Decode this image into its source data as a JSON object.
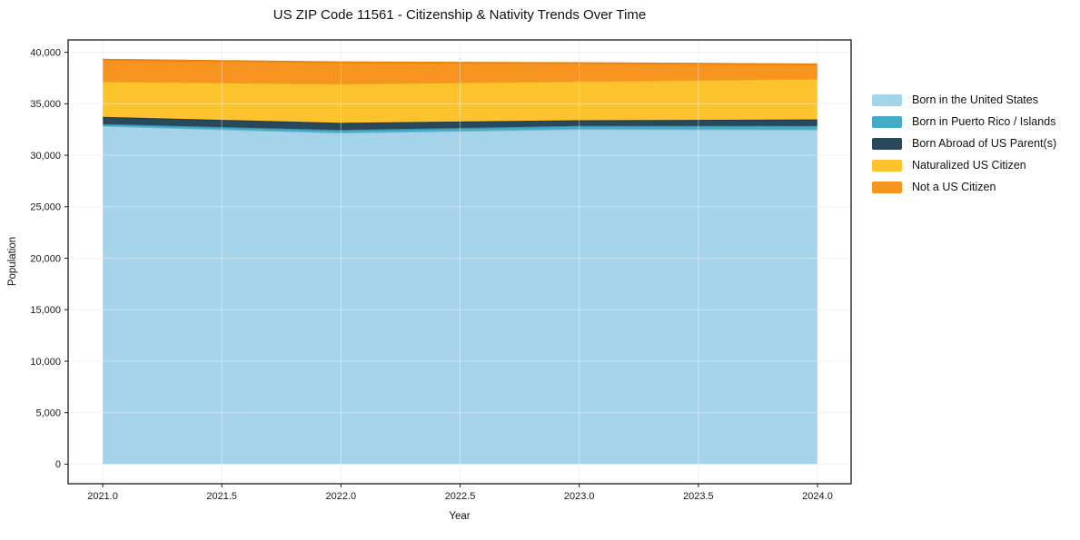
{
  "title": "US ZIP Code 11561 - Citizenship & Nativity Trends Over Time",
  "axes": {
    "xlabel": "Year",
    "ylabel": "Population",
    "xtick_labels": [
      "2021.0",
      "2021.5",
      "2022.0",
      "2022.5",
      "2023.0",
      "2023.5",
      "2024.0"
    ],
    "ytick_labels": [
      "0",
      "5,000",
      "10,000",
      "15,000",
      "20,000",
      "25,000",
      "30,000",
      "35,000",
      "40,000"
    ]
  },
  "legend": {
    "position": "outside-right",
    "items": [
      {
        "label": "Born in the United States",
        "color": "#a5d3e9"
      },
      {
        "label": "Born in Puerto Rico / Islands",
        "color": "#45aac4"
      },
      {
        "label": "Born Abroad of US Parent(s)",
        "color": "#29485c"
      },
      {
        "label": "Naturalized US Citizen",
        "color": "#fdc32d"
      },
      {
        "label": "Not a US Citizen",
        "color": "#f7941f"
      }
    ]
  },
  "chart_data": {
    "type": "area",
    "stacked": true,
    "title": "US ZIP Code 11561 - Citizenship & Nativity Trends Over Time",
    "xlabel": "Year",
    "ylabel": "Population",
    "x": [
      2021,
      2022,
      2023,
      2024
    ],
    "xticks": [
      2021.0,
      2021.5,
      2022.0,
      2022.5,
      2023.0,
      2023.5,
      2024.0
    ],
    "yticks": [
      0,
      5000,
      10000,
      15000,
      20000,
      25000,
      30000,
      35000,
      40000
    ],
    "xlim": [
      2020.855,
      2024.141
    ],
    "ylim": [
      -1900,
      41200
    ],
    "grid": true,
    "legend_position": "outside-right",
    "series": [
      {
        "name": "Born in the United States",
        "color": "#a5d3e9",
        "edge_color": "#7ab7d3",
        "values": [
          32850,
          32200,
          32550,
          32500
        ]
      },
      {
        "name": "Born in Puerto Rico / Islands",
        "color": "#45aac4",
        "edge_color": "#3495af",
        "values": [
          180,
          250,
          300,
          350
        ]
      },
      {
        "name": "Born Abroad of US Parent(s)",
        "color": "#29485c",
        "edge_color": "#1e3a4b",
        "values": [
          700,
          700,
          550,
          630
        ]
      },
      {
        "name": "Naturalized US Citizen",
        "color": "#fdc32d",
        "edge_color": "#efa51f",
        "values": [
          3450,
          3800,
          3800,
          3950
        ]
      },
      {
        "name": "Not a US Citizen",
        "color": "#f7941f",
        "edge_color": "#e8830f",
        "values": [
          2100,
          2080,
          1750,
          1400
        ]
      }
    ]
  }
}
